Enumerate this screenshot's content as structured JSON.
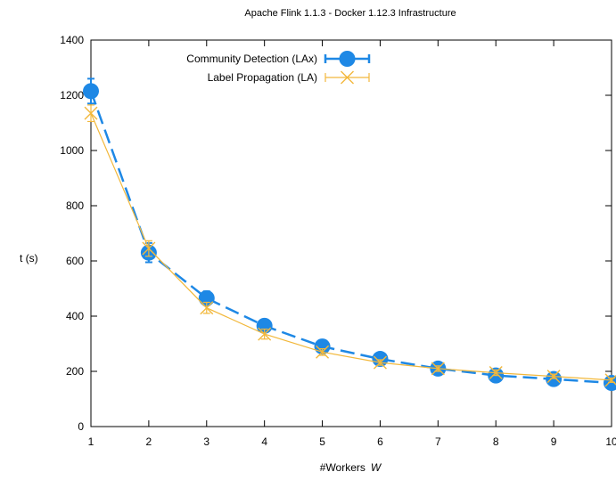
{
  "chart_data": {
    "type": "line",
    "title": "Apache Flink 1.1.3 - Docker 1.12.3 Infrastructure",
    "xlabel": "#Workers",
    "xlabel_symbol": "W",
    "ylabel": "t (s)",
    "xlim": [
      1,
      10
    ],
    "ylim": [
      0,
      1400
    ],
    "xticks": [
      "1",
      "2",
      "3",
      "4",
      "5",
      "6",
      "7",
      "8",
      "9",
      "10"
    ],
    "yticks": [
      "0",
      "200",
      "400",
      "600",
      "800",
      "1000",
      "1200",
      "1400"
    ],
    "grid": false,
    "legend_position": "top-left",
    "x": [
      1,
      2,
      3,
      4,
      5,
      6,
      7,
      8,
      9,
      10
    ],
    "series": [
      {
        "name": "Community Detection (LAx)",
        "color": "#1e88e5",
        "marker": "circle",
        "line_style": "dashed",
        "values": [
          1215,
          630,
          465,
          365,
          290,
          245,
          210,
          185,
          172,
          158
        ],
        "errors": [
          45,
          35,
          25,
          22,
          15,
          12,
          10,
          10,
          8,
          8
        ]
      },
      {
        "name": "Label Propagation (LA)",
        "color": "#f2b83c",
        "marker": "cross",
        "line_style": "solid",
        "values": [
          1135,
          645,
          430,
          335,
          270,
          232,
          210,
          195,
          182,
          168
        ],
        "errors": [
          30,
          28,
          20,
          18,
          12,
          10,
          10,
          10,
          8,
          8
        ]
      }
    ]
  }
}
